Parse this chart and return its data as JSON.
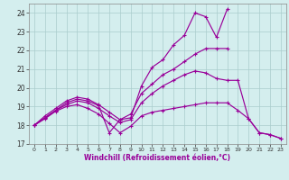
{
  "xlabel": "Windchill (Refroidissement éolien,°C)",
  "x_values": [
    0,
    1,
    2,
    3,
    4,
    5,
    6,
    7,
    8,
    9,
    10,
    11,
    12,
    13,
    14,
    15,
    16,
    17,
    18,
    19,
    20,
    21,
    22,
    23
  ],
  "line_zigzag": [
    18.0,
    18.4,
    18.8,
    19.2,
    19.4,
    19.3,
    19.05,
    17.6,
    18.3,
    18.4,
    20.1,
    21.1,
    21.5,
    22.3,
    22.8,
    24.0,
    23.8,
    22.7,
    24.2,
    null,
    null,
    null,
    null,
    null
  ],
  "line_upper_diag": [
    18.0,
    18.5,
    18.9,
    19.3,
    19.5,
    19.4,
    19.1,
    18.7,
    18.3,
    18.6,
    19.7,
    20.2,
    20.7,
    21.0,
    21.4,
    21.8,
    22.1,
    22.1,
    22.1,
    null,
    null,
    null,
    null,
    null
  ],
  "line_mid": [
    18.0,
    18.4,
    18.8,
    19.1,
    19.3,
    19.2,
    18.9,
    18.5,
    18.15,
    18.3,
    19.2,
    19.7,
    20.1,
    20.4,
    20.7,
    20.9,
    20.8,
    20.5,
    20.4,
    20.4,
    18.35,
    17.6,
    17.5,
    17.3
  ],
  "line_bottom_diag": [
    18.0,
    18.35,
    18.75,
    19.0,
    19.1,
    18.9,
    18.6,
    18.1,
    17.6,
    17.95,
    18.5,
    18.7,
    18.8,
    18.9,
    19.0,
    19.1,
    19.2,
    19.2,
    19.2,
    18.8,
    18.35,
    17.6,
    17.5,
    17.3
  ],
  "ylim": [
    17.0,
    24.5
  ],
  "yticks": [
    17,
    18,
    19,
    20,
    21,
    22,
    23,
    24
  ],
  "color": "#990099",
  "bg_color": "#d4eeee",
  "grid_color": "#aacccc"
}
